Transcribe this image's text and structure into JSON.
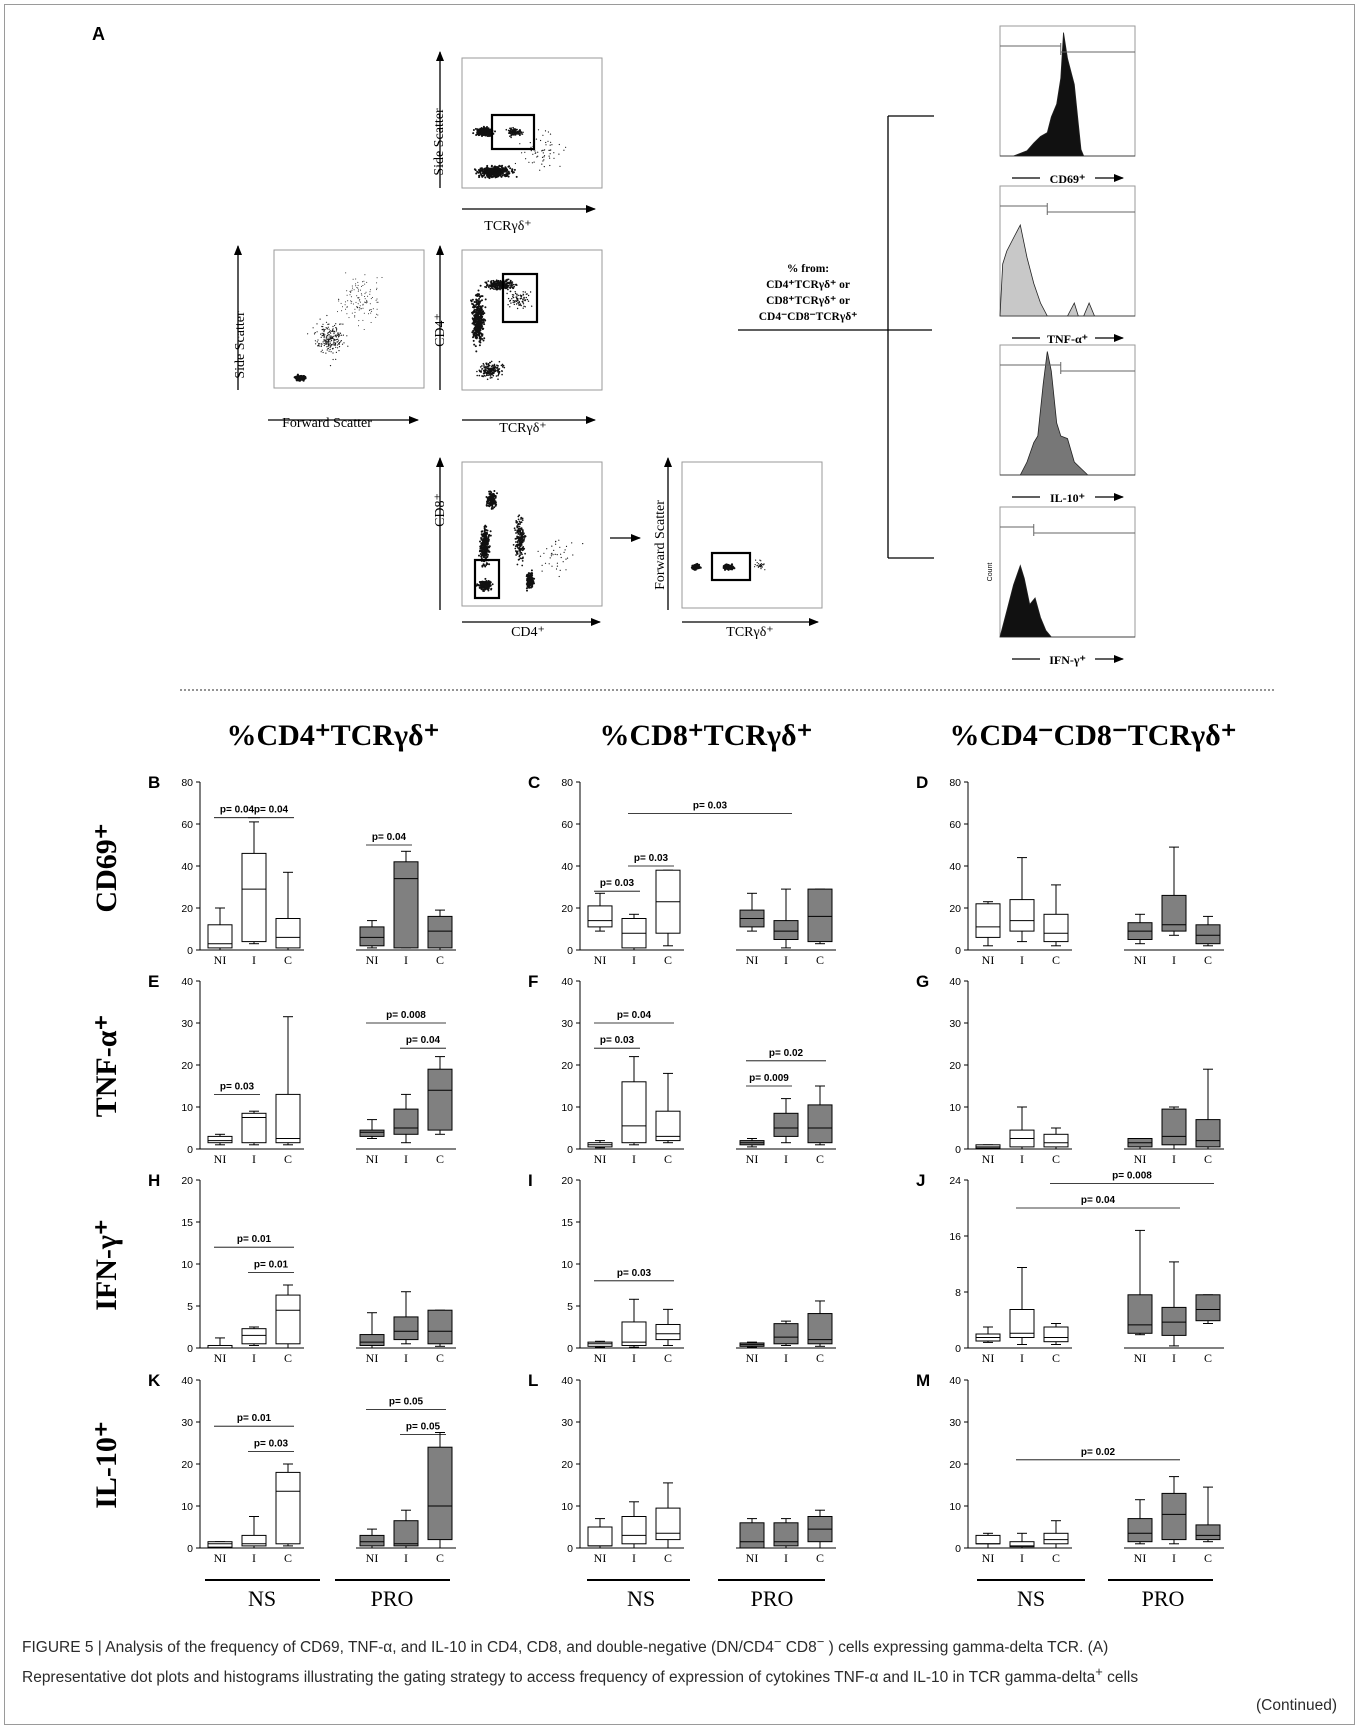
{
  "panel_a": {
    "letter": "A",
    "fsc_plot": {
      "ylabel": "Side Scatter",
      "xlabel": "Forward Scatter"
    },
    "side_tcr_plot": {
      "ylabel": "Side Scatter",
      "xlabel": "TCRγδ⁺"
    },
    "cd4_tcr_plot": {
      "ylabel": "CD4⁺",
      "xlabel": "TCRγδ⁺"
    },
    "cd8_cd4_plot": {
      "ylabel": "CD8⁺",
      "xlabel": "CD4⁺"
    },
    "fsc_tcr_plot": {
      "ylabel": "Forward Scatter",
      "xlabel": "TCRγδ⁺"
    },
    "percent_label": [
      "% from:",
      "CD4⁺TCRγδ⁺ or",
      "CD8⁺TCRγδ⁺ or",
      "CD4⁻CD8⁻TCRγδ⁺"
    ],
    "histograms": [
      {
        "label": "CD69⁺",
        "fill": "#111111"
      },
      {
        "label": "TNF-α⁺",
        "fill": "#c8c8c8"
      },
      {
        "label": "IL-10⁺",
        "fill": "#777777"
      },
      {
        "label": "IFN-γ⁺",
        "fill": "#111111",
        "ylabel": "Count"
      }
    ]
  },
  "column_titles": [
    "%CD4⁺TCRγδ⁺",
    "%CD8⁺TCRγδ⁺",
    "%CD4⁻CD8⁻TCRγδ⁺"
  ],
  "row_titles": [
    "CD69⁺",
    "TNF-α⁺",
    "IFN-γ⁺",
    "IL-10⁺"
  ],
  "group_labels": [
    "NS",
    "PRO"
  ],
  "colors": {
    "ns_box": "#ffffff",
    "pro_box": "#808080",
    "frame": "#9a9a9a"
  },
  "chart_data": [
    {
      "panel": "B",
      "type": "box",
      "categories": [
        "NI",
        "I",
        "C",
        "NI",
        "I",
        "C"
      ],
      "ylim": [
        0,
        80
      ],
      "yticks": [
        0,
        20,
        40,
        60,
        80
      ],
      "boxes": [
        [
          0,
          1,
          3,
          12,
          20
        ],
        [
          3,
          4,
          29,
          46,
          61
        ],
        [
          0,
          1,
          6,
          15,
          37
        ],
        [
          1,
          2,
          6,
          11,
          14
        ],
        [
          1,
          1,
          34,
          42,
          47
        ],
        [
          0,
          1,
          9,
          16,
          19
        ]
      ],
      "annotations": [
        {
          "text": "p= 0.04",
          "from": 0,
          "to": 1,
          "y": 63
        },
        {
          "text": "p= 0.04",
          "from": 1,
          "to": 2,
          "y": 63
        },
        {
          "text": "p= 0.04",
          "from": 3,
          "to": 4,
          "y": 50
        }
      ]
    },
    {
      "panel": "C",
      "type": "box",
      "categories": [
        "NI",
        "I",
        "C",
        "NI",
        "I",
        "C"
      ],
      "ylim": [
        0,
        80
      ],
      "yticks": [
        0,
        20,
        40,
        60,
        80
      ],
      "boxes": [
        [
          9,
          11,
          14,
          21,
          27
        ],
        [
          0,
          1,
          8,
          15,
          17
        ],
        [
          2,
          8,
          23,
          38,
          38
        ],
        [
          9,
          11,
          15,
          19,
          27
        ],
        [
          1,
          5,
          9,
          14,
          29
        ],
        [
          3,
          4,
          16,
          29,
          29
        ]
      ],
      "annotations": [
        {
          "text": "p= 0.03",
          "from": 1,
          "to": 4,
          "y": 65
        },
        {
          "text": "p= 0.03",
          "from": 0,
          "to": 1,
          "y": 28
        },
        {
          "text": "p= 0.03",
          "from": 1,
          "to": 2,
          "y": 40
        }
      ]
    },
    {
      "panel": "D",
      "type": "box",
      "categories": [
        "NI",
        "I",
        "C",
        "NI",
        "I",
        "C"
      ],
      "ylim": [
        0,
        80
      ],
      "yticks": [
        0,
        20,
        40,
        60,
        80
      ],
      "boxes": [
        [
          2,
          6,
          11,
          22,
          23
        ],
        [
          4,
          9,
          14,
          24,
          44
        ],
        [
          2,
          4,
          8,
          17,
          31
        ],
        [
          3,
          5,
          9,
          13,
          17
        ],
        [
          7,
          9,
          12,
          26,
          49
        ],
        [
          2,
          3,
          7,
          12,
          16
        ]
      ],
      "annotations": []
    },
    {
      "panel": "E",
      "type": "box",
      "categories": [
        "NI",
        "I",
        "C",
        "NI",
        "I",
        "C"
      ],
      "ylim": [
        0,
        40
      ],
      "yticks": [
        0,
        10,
        20,
        30,
        40
      ],
      "boxes": [
        [
          1,
          1.5,
          2,
          3,
          3.5
        ],
        [
          1,
          1.5,
          7.5,
          8.5,
          9
        ],
        [
          1,
          1.5,
          2.5,
          13,
          31.5
        ],
        [
          2.5,
          3,
          4,
          4.5,
          7
        ],
        [
          1.5,
          3.5,
          5,
          9.5,
          13
        ],
        [
          3.5,
          4.5,
          14,
          19,
          22
        ]
      ],
      "annotations": [
        {
          "text": "p= 0.03",
          "from": 0,
          "to": 1,
          "y": 13
        },
        {
          "text": "p= 0.008",
          "from": 3,
          "to": 5,
          "y": 30
        },
        {
          "text": "p= 0.04",
          "from": 4,
          "to": 5,
          "y": 24
        }
      ]
    },
    {
      "panel": "F",
      "type": "box",
      "categories": [
        "NI",
        "I",
        "C",
        "NI",
        "I",
        "C"
      ],
      "ylim": [
        0,
        40
      ],
      "yticks": [
        0,
        10,
        20,
        30,
        40
      ],
      "boxes": [
        [
          0.3,
          0.5,
          1,
          1.5,
          2
        ],
        [
          1,
          1.5,
          5.5,
          16,
          22
        ],
        [
          1.5,
          2,
          3,
          9,
          18
        ],
        [
          0.5,
          1,
          1.5,
          2,
          2.5
        ],
        [
          1.5,
          3,
          5,
          8.5,
          12
        ],
        [
          1,
          1.5,
          5,
          10.5,
          15
        ]
      ],
      "annotations": [
        {
          "text": "p= 0.04",
          "from": 0,
          "to": 2,
          "y": 30
        },
        {
          "text": "p= 0.03",
          "from": 0,
          "to": 1,
          "y": 24
        },
        {
          "text": "p= 0.02",
          "from": 3,
          "to": 5,
          "y": 21
        },
        {
          "text": "p= 0.009",
          "from": 3,
          "to": 4,
          "y": 15
        }
      ]
    },
    {
      "panel": "G",
      "type": "box",
      "categories": [
        "NI",
        "I",
        "C",
        "NI",
        "I",
        "C"
      ],
      "ylim": [
        0,
        40
      ],
      "yticks": [
        0,
        10,
        20,
        30,
        40
      ],
      "boxes": [
        [
          0,
          0.2,
          0.5,
          1,
          1
        ],
        [
          0,
          0.5,
          2.5,
          4.5,
          10
        ],
        [
          0,
          0.5,
          1.5,
          3.5,
          5
        ],
        [
          0,
          0.5,
          1.5,
          2.5,
          2.5
        ],
        [
          0,
          1,
          3,
          9.5,
          10
        ],
        [
          0,
          0.5,
          2,
          7,
          19
        ]
      ],
      "annotations": []
    },
    {
      "panel": "H",
      "type": "box",
      "categories": [
        "NI",
        "I",
        "C",
        "NI",
        "I",
        "C"
      ],
      "ylim": [
        0,
        20
      ],
      "yticks": [
        0,
        5,
        10,
        15,
        20
      ],
      "boxes": [
        [
          0,
          0,
          0,
          0.3,
          1.2
        ],
        [
          0.3,
          0.5,
          1.5,
          2.3,
          2.5
        ],
        [
          0,
          0.5,
          4.5,
          6.3,
          7.5
        ],
        [
          0,
          0.3,
          0.7,
          1.6,
          4.2
        ],
        [
          0.5,
          1,
          2,
          3.7,
          6.7
        ],
        [
          0.2,
          0.5,
          2,
          4.5,
          4.5
        ]
      ],
      "annotations": [
        {
          "text": "p= 0.01",
          "from": 0,
          "to": 2,
          "y": 12
        },
        {
          "text": "p= 0.01",
          "from": 1,
          "to": 2,
          "y": 9
        }
      ]
    },
    {
      "panel": "I",
      "type": "box",
      "categories": [
        "NI",
        "I",
        "C",
        "NI",
        "I",
        "C"
      ],
      "ylim": [
        0,
        20
      ],
      "yticks": [
        0,
        5,
        10,
        15,
        20
      ],
      "boxes": [
        [
          0.1,
          0.2,
          0.5,
          0.7,
          0.8
        ],
        [
          0.1,
          0.3,
          0.7,
          3.1,
          5.8
        ],
        [
          0.3,
          1,
          1.7,
          2.8,
          4.6
        ],
        [
          0.1,
          0.2,
          0.4,
          0.6,
          0.7
        ],
        [
          0.3,
          0.5,
          1.3,
          2.9,
          3.2
        ],
        [
          0.2,
          0.5,
          1,
          4.1,
          5.6
        ]
      ],
      "annotations": [
        {
          "text": "p= 0.03",
          "from": 0,
          "to": 2,
          "y": 8
        }
      ]
    },
    {
      "panel": "J",
      "type": "box",
      "categories": [
        "NI",
        "I",
        "C",
        "NI",
        "I",
        "C"
      ],
      "ylim": [
        0,
        24
      ],
      "yticks": [
        0,
        8,
        16,
        24
      ],
      "boxes": [
        [
          0.8,
          1,
          1.5,
          2,
          3
        ],
        [
          0.5,
          1.5,
          2.1,
          5.5,
          11.5
        ],
        [
          0.5,
          0.9,
          1.5,
          3,
          3.5
        ],
        [
          1.9,
          2.1,
          3.3,
          7.6,
          16.8
        ],
        [
          0.3,
          1.8,
          3.7,
          5.8,
          12.3
        ],
        [
          3.5,
          3.9,
          5.5,
          7.6,
          7.6
        ]
      ],
      "annotations": [
        {
          "text": "p= 0.008",
          "from": 2,
          "to": 5,
          "y": 23.5
        },
        {
          "text": "p= 0.04",
          "from": 1,
          "to": 4,
          "y": 20
        }
      ]
    },
    {
      "panel": "K",
      "type": "box",
      "categories": [
        "NI",
        "I",
        "C",
        "NI",
        "I",
        "C"
      ],
      "ylim": [
        0,
        40
      ],
      "yticks": [
        0,
        10,
        20,
        30,
        40
      ],
      "boxes": [
        [
          0,
          0.2,
          1,
          1.5,
          1.5
        ],
        [
          0,
          0.5,
          1,
          3,
          7.5
        ],
        [
          0.5,
          1,
          13.5,
          18,
          20
        ],
        [
          0,
          0.5,
          1.5,
          3,
          4.5
        ],
        [
          0,
          0.5,
          1,
          6.5,
          9
        ],
        [
          0,
          2,
          10,
          24,
          27.5
        ]
      ],
      "annotations": [
        {
          "text": "p= 0.01",
          "from": 0,
          "to": 2,
          "y": 29
        },
        {
          "text": "p= 0.03",
          "from": 1,
          "to": 2,
          "y": 23
        },
        {
          "text": "p= 0.05",
          "from": 3,
          "to": 5,
          "y": 33
        },
        {
          "text": "p= 0.05",
          "from": 4,
          "to": 5,
          "y": 27
        }
      ]
    },
    {
      "panel": "L",
      "type": "box",
      "categories": [
        "NI",
        "I",
        "C",
        "NI",
        "I",
        "C"
      ],
      "ylim": [
        0,
        40
      ],
      "yticks": [
        0,
        10,
        20,
        30,
        40
      ],
      "boxes": [
        [
          0,
          0.5,
          0.5,
          5,
          7
        ],
        [
          0,
          1,
          3,
          7.5,
          11
        ],
        [
          0,
          2,
          3.5,
          9.5,
          15.5
        ],
        [
          0,
          0,
          1.5,
          6,
          7
        ],
        [
          0,
          0.5,
          1.5,
          6,
          7
        ],
        [
          0,
          1.5,
          4.5,
          7.5,
          9
        ]
      ],
      "annotations": []
    },
    {
      "panel": "M",
      "type": "box",
      "categories": [
        "NI",
        "I",
        "C",
        "NI",
        "I",
        "C"
      ],
      "ylim": [
        0,
        40
      ],
      "yticks": [
        0,
        10,
        20,
        30,
        40
      ],
      "boxes": [
        [
          0,
          1,
          1,
          3,
          3.5
        ],
        [
          0,
          0.3,
          0.5,
          1.5,
          3.5
        ],
        [
          0,
          1,
          2,
          3.5,
          6.5
        ],
        [
          1,
          1.5,
          3.5,
          7,
          11.5
        ],
        [
          1,
          2,
          8,
          13,
          17
        ],
        [
          1.5,
          2,
          3,
          5.5,
          14.5
        ]
      ],
      "annotations": [
        {
          "text": "p= 0.02",
          "from": 1,
          "to": 4,
          "y": 21
        }
      ]
    }
  ],
  "caption": {
    "line1_a": "FIGURE 5 | Analysis of the frequency of CD69, TNF-α, and IL-10 in CD4, CD8, and double-negative (DN/CD4",
    "sup1": "−",
    "line1_b": " CD8",
    "sup2": "−",
    "line1_c": " ) cells expressing gamma-delta TCR. (A)",
    "line2_a": "Representative dot plots and histograms illustrating the gating strategy to access frequency of expression of cytokines TNF-α and IL-10 in TCR gamma-delta",
    "sup3": "+",
    "line2_b": "  cells",
    "continued": "(Continued)"
  }
}
